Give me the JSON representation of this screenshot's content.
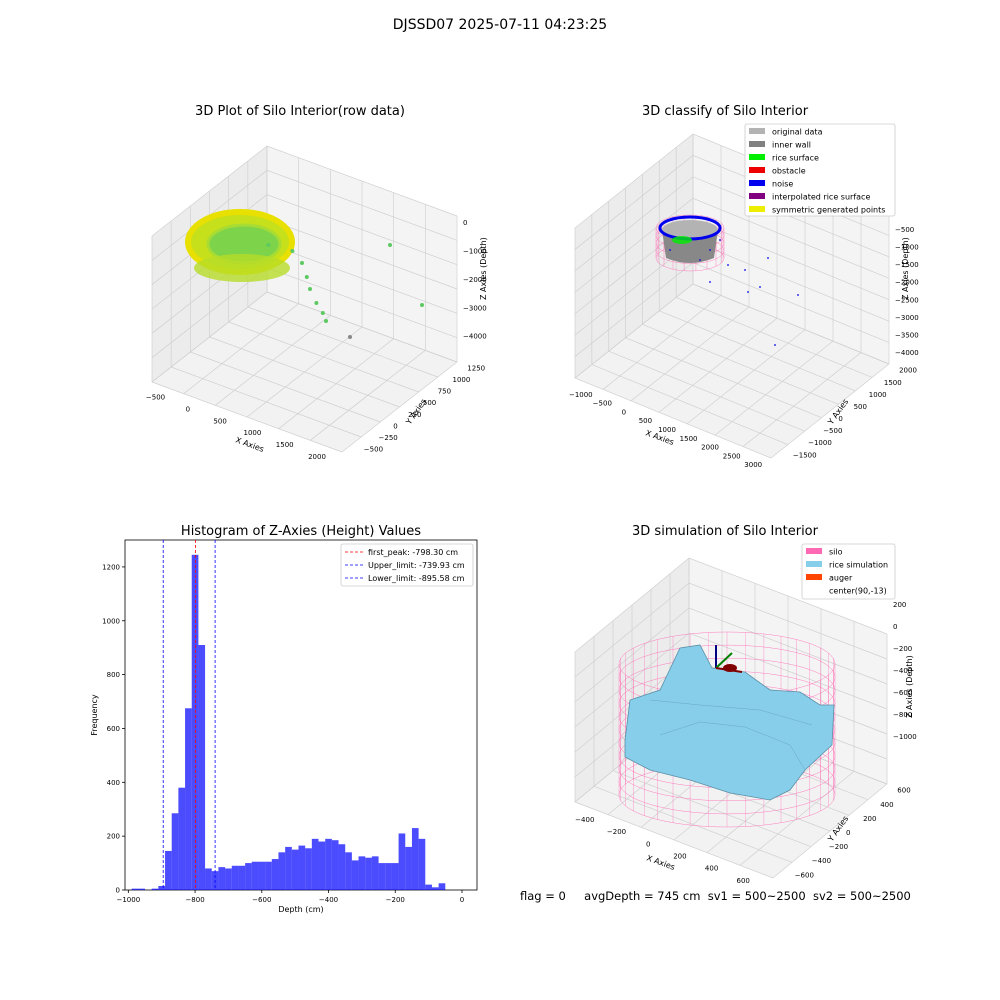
{
  "figure": {
    "suptitle": "DJSSD07 2025-07-11 04:23:25",
    "footer": {
      "flag": "flag = 0",
      "avg_depth": "avgDepth = 745 cm",
      "sv1": "sv1 = 500~2500",
      "sv2": "sv2 = 500~2500"
    }
  },
  "chart_data": [
    {
      "type": "scatter",
      "projection": "3d",
      "title": "3D Plot of Silo Interior(row data)",
      "xlabel": "X Axies",
      "ylabel": "Y Axies",
      "zlabel": "Z Axies (Depth)",
      "x_ticks": [
        "−500",
        "0",
        "500",
        "1000",
        "1500",
        "2000"
      ],
      "y_ticks": [
        "−500",
        "−250",
        "0",
        "250",
        "500",
        "750",
        "1000",
        "1250"
      ],
      "z_ticks": [
        "0",
        "−1000",
        "−2000",
        "−3000",
        "−4000"
      ],
      "colormap": "viridis-yellow",
      "point_color_top": "#e8e000",
      "point_color_mid": "#7dd34a",
      "outlier_points": [
        [
          -60,
          -1000
        ],
        [
          90,
          -1150
        ],
        [
          150,
          -1450
        ],
        [
          180,
          -1800
        ],
        [
          200,
          -2100
        ],
        [
          240,
          -2450
        ],
        [
          280,
          -2700
        ],
        [
          300,
          -2900
        ],
        [
          700,
          -1000
        ],
        [
          900,
          -2500
        ],
        [
          450,
          -3300
        ]
      ]
    },
    {
      "type": "scatter",
      "projection": "3d",
      "title": "3D classify of Silo Interior",
      "xlabel": "X Axies",
      "ylabel": "Y Axies",
      "zlabel": "Z Axies (Depth)",
      "x_ticks": [
        "−1000",
        "−500",
        "0",
        "500",
        "1000",
        "1500",
        "2000",
        "2500",
        "3000"
      ],
      "y_ticks": [
        "−1500",
        "−1000",
        "−500",
        "0",
        "500",
        "1000",
        "1500",
        "2000"
      ],
      "z_ticks": [
        "−500",
        "−1000",
        "−1500",
        "−2000",
        "−2500",
        "−3000",
        "−3500",
        "−4000"
      ],
      "legend": [
        {
          "label": "original data",
          "color": "#b3b3b3"
        },
        {
          "label": "inner wall",
          "color": "#808080"
        },
        {
          "label": "rice surface",
          "color": "#00ee00"
        },
        {
          "label": "obstacle",
          "color": "#ee0000"
        },
        {
          "label": "noise",
          "color": "#0000ee"
        },
        {
          "label": "interpolated rice surface",
          "color": "#800080"
        },
        {
          "label": "symmetric generated points",
          "color": "#eeee00"
        }
      ],
      "legend_position": "top-right"
    },
    {
      "type": "bar",
      "title": "Histogram of Z-Axies (Height) Values",
      "xlabel": "Depth (cm)",
      "ylabel": "Frequency",
      "xlim": [
        -1000,
        0
      ],
      "ylim": [
        0,
        1300
      ],
      "x_ticks": [
        -1000,
        -800,
        -600,
        -400,
        -200,
        0
      ],
      "y_ticks": [
        0,
        200,
        400,
        600,
        800,
        1000,
        1200
      ],
      "bin_width": 20,
      "bin_start": -980,
      "values": [
        5,
        5,
        0,
        5,
        15,
        145,
        285,
        380,
        675,
        1245,
        910,
        80,
        70,
        85,
        80,
        90,
        90,
        100,
        105,
        105,
        105,
        115,
        140,
        160,
        150,
        165,
        155,
        190,
        180,
        190,
        185,
        170,
        140,
        110,
        125,
        120,
        125,
        100,
        100,
        100,
        210,
        160,
        230,
        190,
        20,
        10,
        25
      ],
      "bar_color": "#0000ff",
      "vlines": [
        {
          "label": "first_peak: -798.30 cm",
          "x": -798.3,
          "color": "#ff0000"
        },
        {
          "label": "Upper_limit: -739.93 cm",
          "x": -739.93,
          "color": "#0000ff"
        },
        {
          "label": "Lower_limit: -895.58 cm",
          "x": -895.58,
          "color": "#0000ff"
        }
      ],
      "legend_position": "top-right"
    },
    {
      "type": "surface",
      "projection": "3d",
      "title": "3D simulation of Silo Interior",
      "xlabel": "X Axies",
      "ylabel": "Y Axies",
      "zlabel": "Z Axies (Depth)",
      "x_ticks": [
        "−400",
        "−200",
        "0",
        "200",
        "400",
        "600"
      ],
      "y_ticks": [
        "−600",
        "−400",
        "−200",
        "0",
        "200",
        "400",
        "600"
      ],
      "z_ticks": [
        "200",
        "0",
        "−200",
        "−400",
        "−600",
        "−800",
        "−1000"
      ],
      "legend": [
        {
          "label": "silo",
          "color": "#ff69b4"
        },
        {
          "label": "rice simulation",
          "color": "#87ceeb"
        },
        {
          "label": "auger",
          "color": "#ff4500"
        },
        {
          "label": "center(90,-13)",
          "color": ""
        }
      ],
      "legend_position": "top-right"
    }
  ]
}
